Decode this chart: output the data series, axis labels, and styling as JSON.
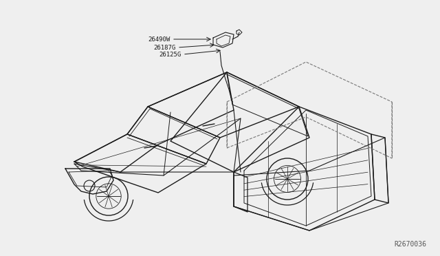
{
  "background_color": "#efefef",
  "label1": "26490W",
  "label2": "26187G",
  "label3": "26125G",
  "ref_code": "R2670036",
  "line_color": "#1a1a1a",
  "label_color": "#1a1a1a",
  "ref_color": "#555555",
  "label_fontsize": 6.5,
  "ref_fontsize": 7
}
